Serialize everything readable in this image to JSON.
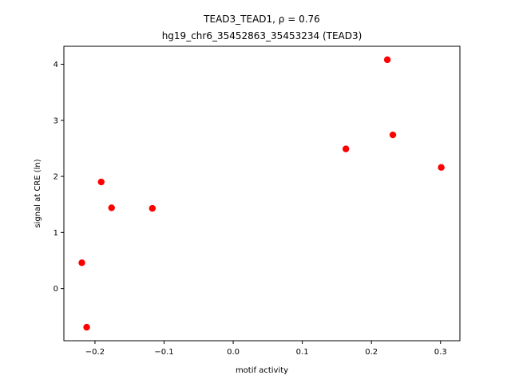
{
  "chart_data": {
    "type": "scatter",
    "title_line1": "TEAD3_TEAD1, ρ = 0.76",
    "title_line2": "hg19_chr6_35452863_35453234 (TEAD3)",
    "xlabel": "motif activity",
    "ylabel": "signal at CRE (ln)",
    "xlim": [
      -0.245,
      0.328
    ],
    "ylim": [
      -0.93,
      4.32
    ],
    "xticks": [
      -0.2,
      -0.1,
      0.0,
      0.1,
      0.2,
      0.3
    ],
    "xtick_labels": [
      "−0.2",
      "−0.1",
      "0.0",
      "0.1",
      "0.2",
      "0.3"
    ],
    "yticks": [
      0,
      1,
      2,
      3,
      4
    ],
    "ytick_labels": [
      "0",
      "1",
      "2",
      "3",
      "4"
    ],
    "marker_color": "#ff0000",
    "points": [
      {
        "x": -0.219,
        "y": 0.46
      },
      {
        "x": -0.212,
        "y": -0.69
      },
      {
        "x": -0.191,
        "y": 1.9
      },
      {
        "x": -0.176,
        "y": 1.44
      },
      {
        "x": -0.117,
        "y": 1.43
      },
      {
        "x": 0.163,
        "y": 2.49
      },
      {
        "x": 0.223,
        "y": 4.08
      },
      {
        "x": 0.231,
        "y": 2.74
      },
      {
        "x": 0.301,
        "y": 2.16
      }
    ]
  }
}
